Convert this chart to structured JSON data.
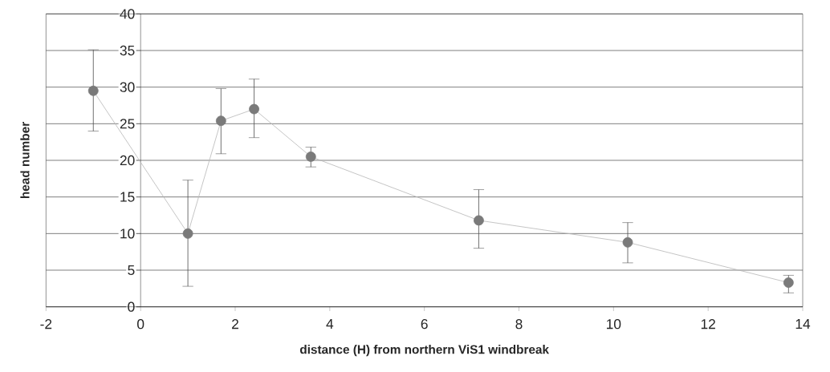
{
  "chart_data": {
    "type": "line",
    "xlabel": "distance (H) from northern ViS1 windbreak",
    "ylabel": "head number",
    "x": [
      -1,
      1,
      1.7,
      2.4,
      3.6,
      7.15,
      10.3,
      13.7
    ],
    "series": [
      {
        "color": "#7a7a7a",
        "values": [
          29.5,
          10,
          25.4,
          27,
          20.5,
          11.8,
          8.8,
          3.3
        ],
        "errors": [
          [
            24,
            35.1
          ],
          [
            2.8,
            17.3
          ],
          [
            20.9,
            29.8
          ],
          [
            23.1,
            31.1
          ],
          [
            19.1,
            21.8
          ],
          [
            8,
            16
          ],
          [
            6,
            11.5
          ],
          [
            1.9,
            4.3
          ]
        ]
      }
    ],
    "xlim": [
      -2,
      14
    ],
    "xticks": [
      -2,
      0,
      2,
      4,
      6,
      8,
      10,
      12,
      14
    ],
    "ylim": [
      0,
      40
    ],
    "yticks": [
      0,
      5,
      10,
      15,
      20,
      25,
      30,
      35,
      40
    ],
    "grid": "y",
    "marker": "circle",
    "line_style": "solid"
  }
}
